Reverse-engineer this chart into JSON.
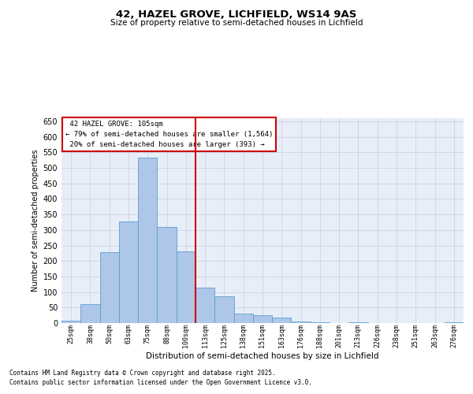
{
  "title": "42, HAZEL GROVE, LICHFIELD, WS14 9AS",
  "subtitle": "Size of property relative to semi-detached houses in Lichfield",
  "xlabel": "Distribution of semi-detached houses by size in Lichfield",
  "ylabel": "Number of semi-detached properties",
  "categories": [
    "25sqm",
    "38sqm",
    "50sqm",
    "63sqm",
    "75sqm",
    "88sqm",
    "100sqm",
    "113sqm",
    "125sqm",
    "138sqm",
    "151sqm",
    "163sqm",
    "176sqm",
    "188sqm",
    "201sqm",
    "213sqm",
    "226sqm",
    "238sqm",
    "251sqm",
    "263sqm",
    "276sqm"
  ],
  "values": [
    8,
    60,
    228,
    328,
    533,
    310,
    232,
    113,
    87,
    30,
    26,
    17,
    4,
    3,
    0,
    2,
    0,
    0,
    0,
    0,
    3
  ],
  "bar_color": "#aec6e8",
  "bar_edge_color": "#5a9fd4",
  "vline_x": 6.5,
  "vline_color": "#cc0000",
  "vline_label": "42 HAZEL GROVE: 105sqm",
  "smaller_pct": "79%",
  "smaller_count": "1,564",
  "larger_pct": "20%",
  "larger_count": "393",
  "annotation_box_color": "#cc0000",
  "ylim": [
    0,
    660
  ],
  "yticks": [
    0,
    50,
    100,
    150,
    200,
    250,
    300,
    350,
    400,
    450,
    500,
    550,
    600,
    650
  ],
  "grid_color": "#c8d4e8",
  "bg_color": "#e8eef8",
  "footnote1": "Contains HM Land Registry data © Crown copyright and database right 2025.",
  "footnote2": "Contains public sector information licensed under the Open Government Licence v3.0."
}
